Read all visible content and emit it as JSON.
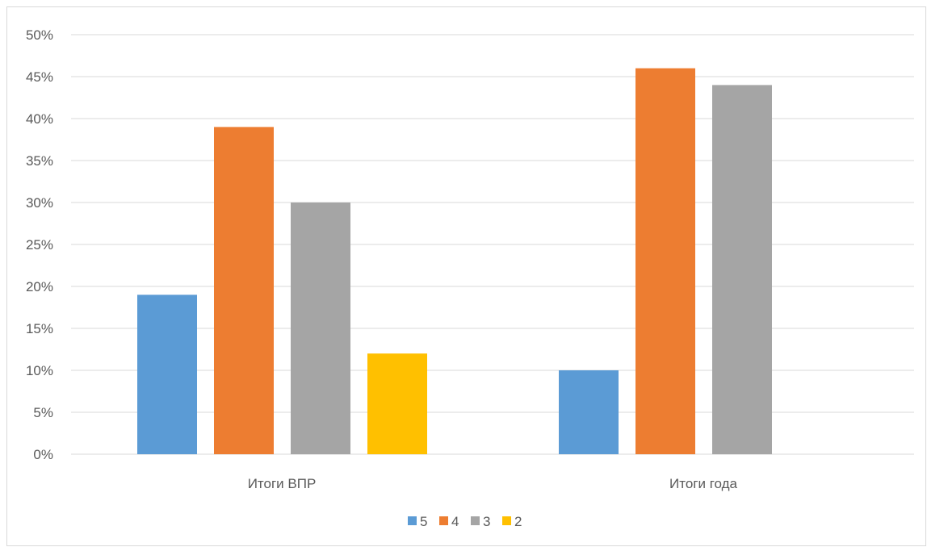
{
  "chart_data": {
    "type": "bar",
    "categories": [
      "Итоги ВПР",
      "Итоги года"
    ],
    "series": [
      {
        "name": "5",
        "values": [
          19,
          10
        ],
        "color": "#5b9bd5"
      },
      {
        "name": "4",
        "values": [
          39,
          46
        ],
        "color": "#ed7d31"
      },
      {
        "name": "3",
        "values": [
          30,
          44
        ],
        "color": "#a5a5a5"
      },
      {
        "name": "2",
        "values": [
          12,
          null
        ],
        "color": "#ffc000"
      }
    ],
    "y_ticks": [
      "0%",
      "5%",
      "10%",
      "15%",
      "20%",
      "25%",
      "30%",
      "35%",
      "40%",
      "45%",
      "50%"
    ],
    "ylim": [
      0,
      50
    ],
    "y_unit": "%",
    "grid": true,
    "legend_position": "bottom"
  }
}
